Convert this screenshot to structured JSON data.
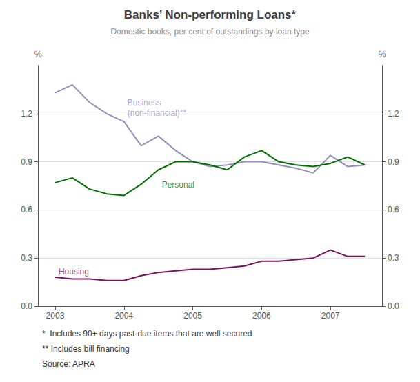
{
  "chart_data": {
    "type": "line",
    "title": "Banks’ Non-performing Loans*",
    "subtitle": "Domestic books, per cent of outstandings by loan type",
    "ylabel": "%",
    "y2label": "%",
    "footnotes": [
      "*  Includes 90+ days past-due items that are well secured",
      "** Includes bill financing",
      "Source: APRA"
    ],
    "xlim": [
      2002.75,
      2007.75
    ],
    "xticks": [
      2003,
      2004,
      2005,
      2006,
      2007
    ],
    "ylim": [
      0.0,
      1.5
    ],
    "yticks": [
      {
        "value": 0.0,
        "label": "0.0"
      },
      0.3,
      0.6,
      0.9,
      1.2
    ],
    "y2lim": [
      0.0,
      1.5
    ],
    "y2ticks": [
      {
        "value": 0.0,
        "label": "0.0"
      },
      0.3,
      0.6,
      0.9,
      1.2
    ],
    "grid": true,
    "series": [
      {
        "color": "#9090bb",
        "x": [
          2003.0,
          2003.25,
          2003.5,
          2003.75,
          2004.0,
          2004.25,
          2004.5,
          2004.75,
          2005.0,
          2005.25,
          2005.5,
          2005.75,
          2006.0,
          2006.25,
          2006.5,
          2006.75,
          2007.0,
          2007.25,
          2007.5
        ],
        "values": [
          1.33,
          1.38,
          1.27,
          1.2,
          1.15,
          1.0,
          1.06,
          0.97,
          0.9,
          0.87,
          0.88,
          0.9,
          0.9,
          0.88,
          0.86,
          0.83,
          0.94,
          0.87,
          0.88
        ]
      },
      {
        "color": "#007000",
        "x": [
          2003.0,
          2003.25,
          2003.5,
          2003.75,
          2004.0,
          2004.25,
          2004.5,
          2004.75,
          2005.0,
          2005.25,
          2005.5,
          2005.75,
          2006.0,
          2006.25,
          2006.5,
          2006.75,
          2007.0,
          2007.25,
          2007.5
        ],
        "values": [
          0.77,
          0.8,
          0.73,
          0.7,
          0.69,
          0.76,
          0.85,
          0.9,
          0.9,
          0.88,
          0.85,
          0.93,
          0.97,
          0.9,
          0.88,
          0.87,
          0.89,
          0.93,
          0.88
        ]
      },
      {
        "color": "#7a1060",
        "x": [
          2003.0,
          2003.25,
          2003.5,
          2003.75,
          2004.0,
          2004.25,
          2004.5,
          2004.75,
          2005.0,
          2005.25,
          2005.5,
          2005.75,
          2006.0,
          2006.25,
          2006.5,
          2006.75,
          2007.0,
          2007.25,
          2007.5
        ],
        "values": [
          0.18,
          0.17,
          0.17,
          0.16,
          0.16,
          0.19,
          0.21,
          0.22,
          0.23,
          0.23,
          0.24,
          0.25,
          0.28,
          0.28,
          0.29,
          0.3,
          0.35,
          0.31,
          0.31
        ]
      }
    ],
    "annotations": [
      {
        "text": "Business\n(non-financial)**",
        "x": 2004.05,
        "y": 1.3,
        "color": "#9090bb"
      },
      {
        "text": "Personal",
        "x": 2004.55,
        "y": 0.79,
        "color": "#007000"
      },
      {
        "text": "Housing",
        "x": 2003.05,
        "y": 0.245,
        "color": "#7a1060"
      }
    ]
  }
}
